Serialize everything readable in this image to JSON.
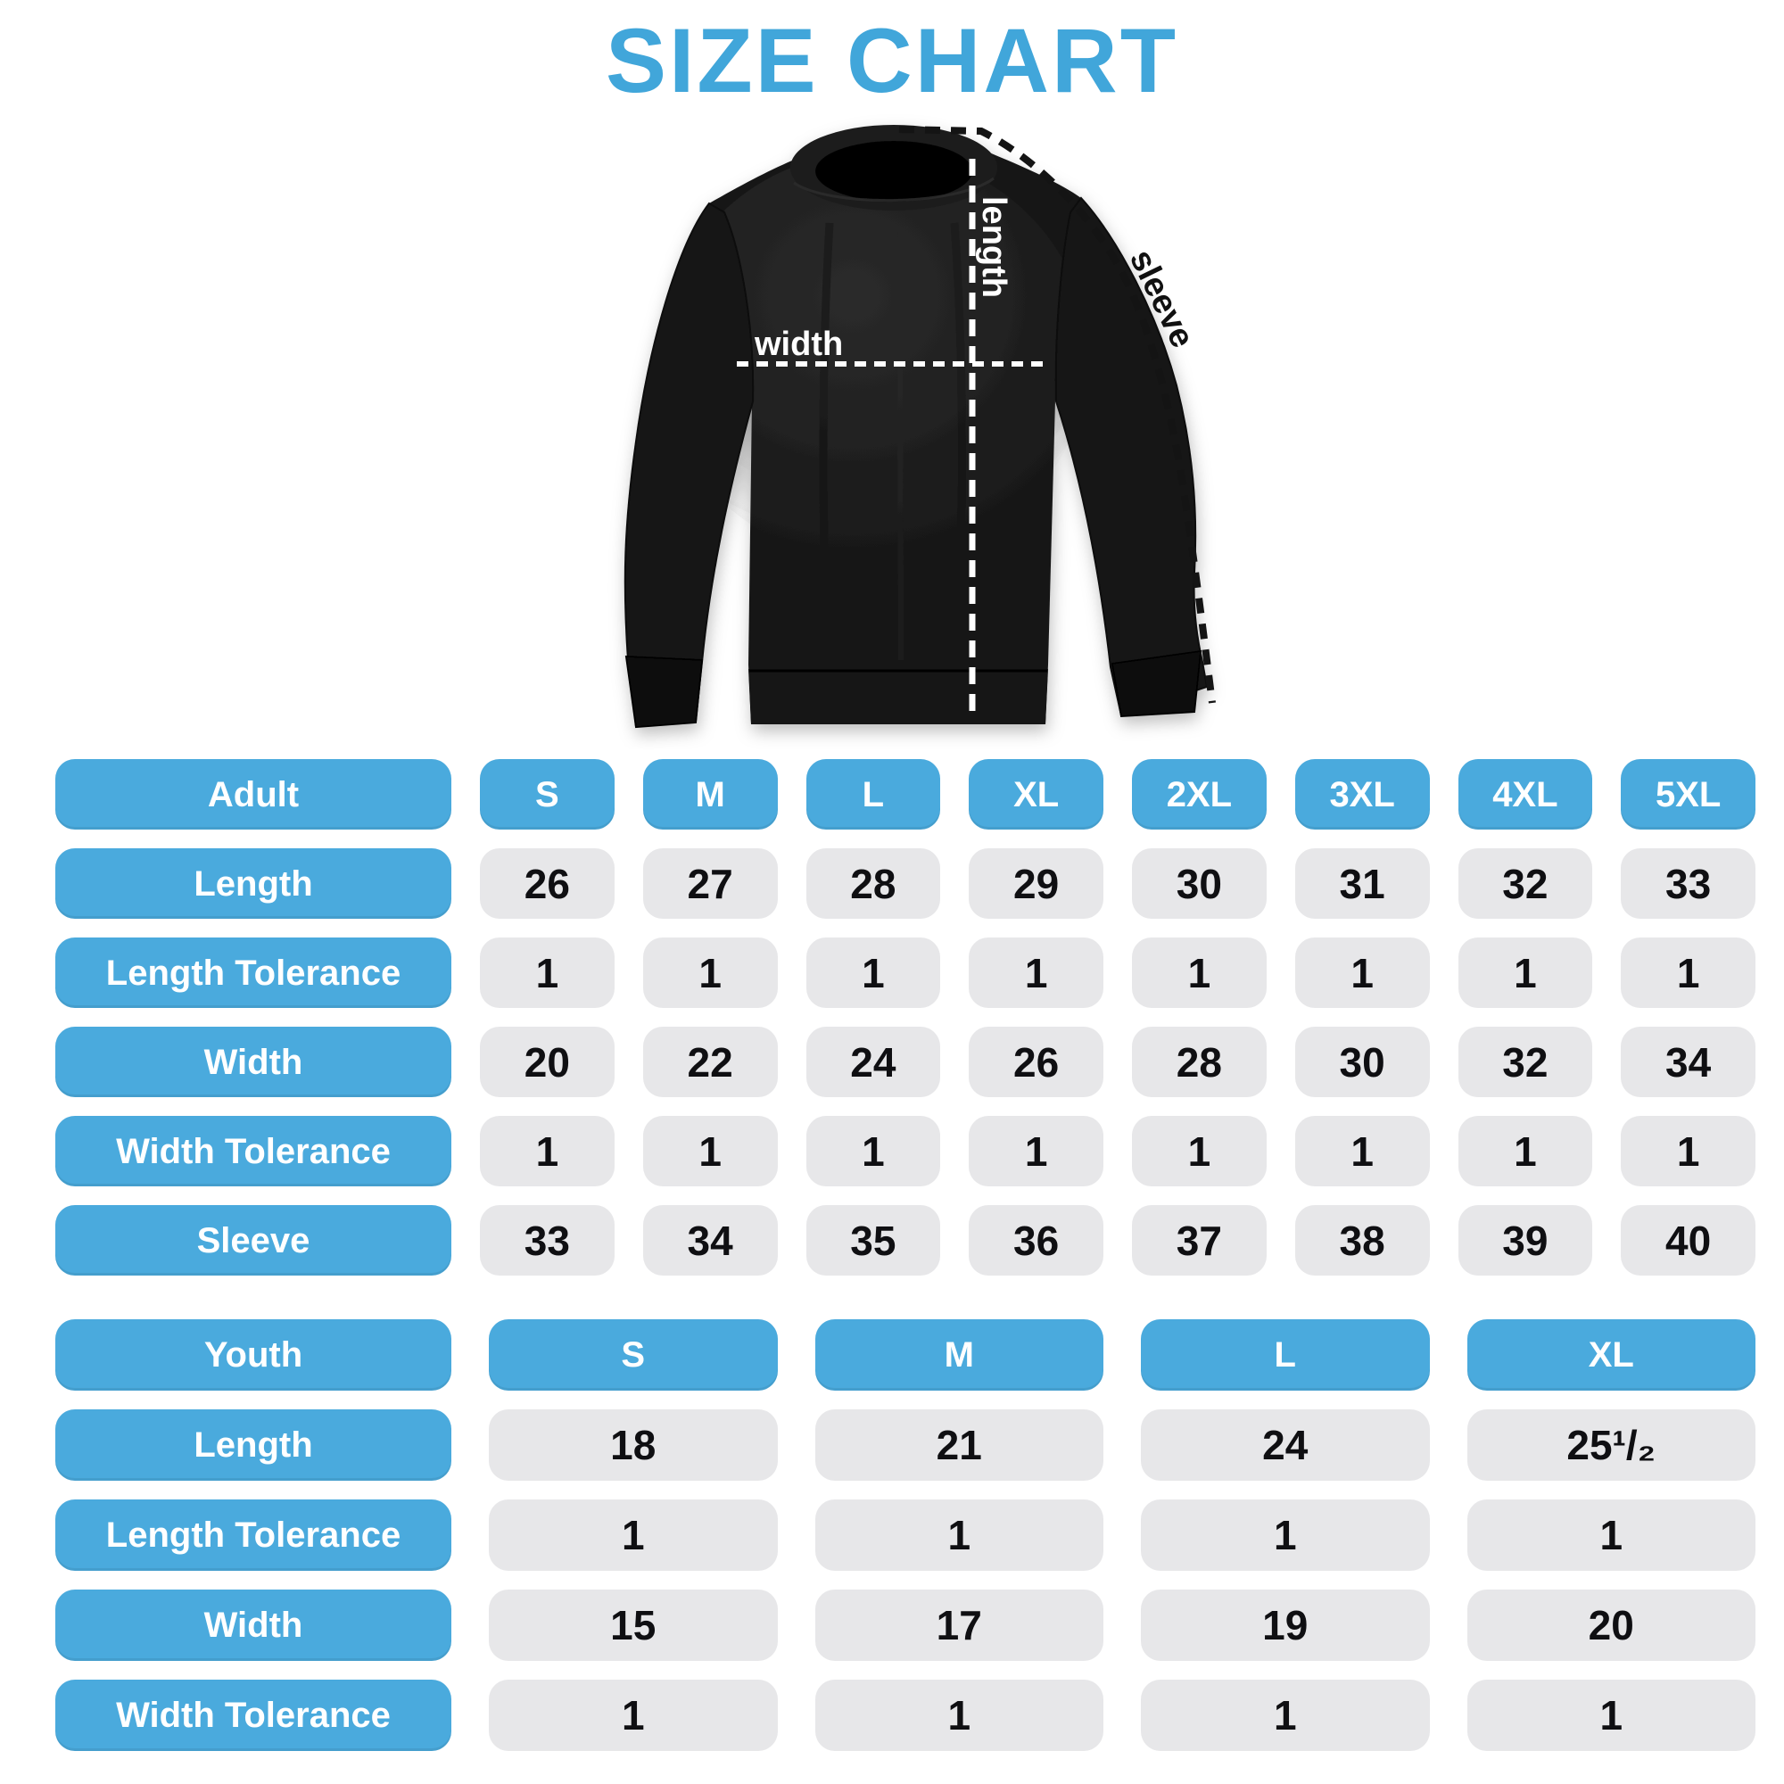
{
  "title": "SIZE CHART",
  "colors": {
    "accent_blue": "#4aaadd",
    "title_blue": "#41a6da",
    "cell_gray": "#e7e7e9",
    "number_black": "#0f0f12",
    "garment_black": "#181818",
    "background": "#ffffff"
  },
  "diagram": {
    "garment": "crewneck-sweatshirt",
    "labels": {
      "length": "length",
      "width": "width",
      "sleeve": "sleeve"
    }
  },
  "adult_table": {
    "name": "Adult",
    "sizes": [
      "S",
      "M",
      "L",
      "XL",
      "2XL",
      "3XL",
      "4XL",
      "5XL"
    ],
    "rows": [
      {
        "label": "Length",
        "values": [
          "26",
          "27",
          "28",
          "29",
          "30",
          "31",
          "32",
          "33"
        ]
      },
      {
        "label": "Length Tolerance",
        "values": [
          "1",
          "1",
          "1",
          "1",
          "1",
          "1",
          "1",
          "1"
        ]
      },
      {
        "label": "Width",
        "values": [
          "20",
          "22",
          "24",
          "26",
          "28",
          "30",
          "32",
          "34"
        ]
      },
      {
        "label": "Width Tolerance",
        "values": [
          "1",
          "1",
          "1",
          "1",
          "1",
          "1",
          "1",
          "1"
        ]
      },
      {
        "label": "Sleeve",
        "values": [
          "33",
          "34",
          "35",
          "36",
          "37",
          "38",
          "39",
          "40"
        ]
      }
    ]
  },
  "youth_table": {
    "name": "Youth",
    "sizes": [
      "S",
      "M",
      "L",
      "XL"
    ],
    "rows": [
      {
        "label": "Length",
        "values": [
          "18",
          "21",
          "24",
          "25¹/₂"
        ]
      },
      {
        "label": "Length Tolerance",
        "values": [
          "1",
          "1",
          "1",
          "1"
        ]
      },
      {
        "label": "Width",
        "values": [
          "15",
          "17",
          "19",
          "20"
        ]
      },
      {
        "label": "Width Tolerance",
        "values": [
          "1",
          "1",
          "1",
          "1"
        ]
      }
    ]
  },
  "chart_data": [
    {
      "type": "table",
      "title": "Adult size chart",
      "columns": [
        "Adult",
        "S",
        "M",
        "L",
        "XL",
        "2XL",
        "3XL",
        "4XL",
        "5XL"
      ],
      "rows": [
        [
          "Length",
          26,
          27,
          28,
          29,
          30,
          31,
          32,
          33
        ],
        [
          "Length Tolerance",
          1,
          1,
          1,
          1,
          1,
          1,
          1,
          1
        ],
        [
          "Width",
          20,
          22,
          24,
          26,
          28,
          30,
          32,
          34
        ],
        [
          "Width Tolerance",
          1,
          1,
          1,
          1,
          1,
          1,
          1,
          1
        ],
        [
          "Sleeve",
          33,
          34,
          35,
          36,
          37,
          38,
          39,
          40
        ]
      ]
    },
    {
      "type": "table",
      "title": "Youth size chart",
      "columns": [
        "Youth",
        "S",
        "M",
        "L",
        "XL"
      ],
      "rows": [
        [
          "Length",
          18,
          21,
          24,
          25.5
        ],
        [
          "Length Tolerance",
          1,
          1,
          1,
          1
        ],
        [
          "Width",
          15,
          17,
          19,
          20
        ],
        [
          "Width Tolerance",
          1,
          1,
          1,
          1
        ]
      ]
    }
  ]
}
